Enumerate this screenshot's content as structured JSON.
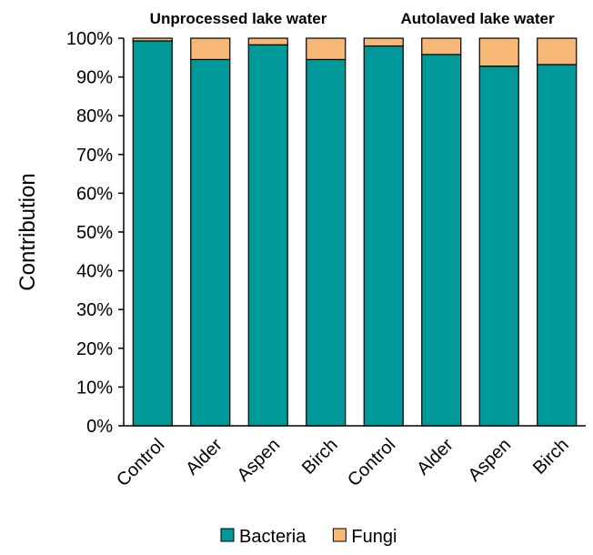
{
  "chart_data": {
    "type": "bar",
    "stacked": true,
    "percent": true,
    "group_titles": [
      "Unprocessed lake water",
      "Autolaved lake water"
    ],
    "categories": [
      "Control",
      "Alder",
      "Aspen",
      "Birch",
      "Control",
      "Alder",
      "Aspen",
      "Birch"
    ],
    "series": [
      {
        "name": "Bacteria",
        "color": "#009999",
        "values": [
          99.3,
          94.5,
          98.3,
          94.5,
          98.0,
          95.8,
          92.8,
          93.2
        ]
      },
      {
        "name": "Fungi",
        "color": "#F7B877",
        "values": [
          0.7,
          5.5,
          1.7,
          5.5,
          2.0,
          4.2,
          7.2,
          6.8
        ]
      }
    ],
    "ylabel": "Contribution",
    "ylim": [
      0,
      100
    ],
    "yticks": [
      "0%",
      "10%",
      "20%",
      "30%",
      "40%",
      "50%",
      "60%",
      "70%",
      "80%",
      "90%",
      "100%"
    ],
    "grid": false,
    "legend": "bottom"
  }
}
